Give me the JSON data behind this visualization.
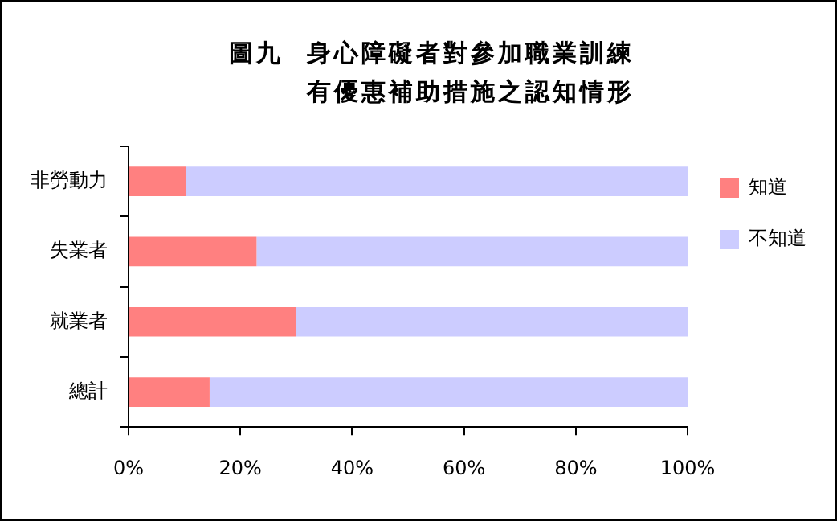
{
  "chart_data": {
    "type": "bar",
    "orientation": "horizontal",
    "stacked": true,
    "title": "圖九  身心障礙者對參加職業訓練有優惠補助措施之認知情形",
    "categories": [
      "非勞動力",
      "失業者",
      "就業者",
      "總計"
    ],
    "series": [
      {
        "name": "知道",
        "color": "#ff8080",
        "values": [
          10.3,
          22.9,
          30.0,
          14.5
        ]
      },
      {
        "name": "不知道",
        "color": "#ccccff",
        "values": [
          89.7,
          77.1,
          70.0,
          85.5
        ]
      }
    ],
    "xlim": [
      0,
      100
    ],
    "xticks": [
      {
        "value": 0,
        "label": "0%"
      },
      {
        "value": 20,
        "label": "20%"
      },
      {
        "value": 40,
        "label": "40%"
      },
      {
        "value": 60,
        "label": "60%"
      },
      {
        "value": 80,
        "label": "80%"
      },
      {
        "value": 100,
        "label": "100%"
      }
    ],
    "grid": false,
    "legend": "right"
  }
}
